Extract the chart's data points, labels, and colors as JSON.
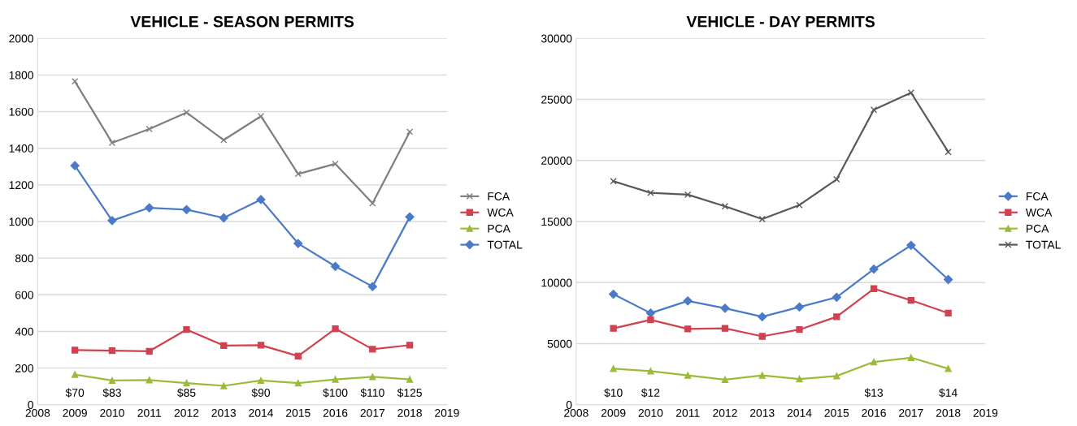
{
  "chart_data": [
    {
      "type": "line",
      "title": "VEHICLE - SEASON PERMITS",
      "x": [
        2009,
        2010,
        2011,
        2012,
        2013,
        2014,
        2015,
        2016,
        2017,
        2018
      ],
      "xlim": [
        2008,
        2019
      ],
      "xticks": [
        2008,
        2009,
        2010,
        2011,
        2012,
        2013,
        2014,
        2015,
        2016,
        2017,
        2018,
        2019
      ],
      "ylim": [
        0,
        2000
      ],
      "yticks": [
        0,
        200,
        400,
        600,
        800,
        1000,
        1200,
        1400,
        1600,
        1800,
        2000
      ],
      "grid": "y",
      "legend": "right",
      "series": [
        {
          "name": "FCA",
          "color": "#7f7f7f",
          "marker": "cross",
          "values": [
            1765,
            1430,
            1505,
            1595,
            1445,
            1575,
            1260,
            1315,
            1100,
            1490
          ]
        },
        {
          "name": "WCA",
          "color": "#d0424f",
          "marker": "square",
          "values": [
            298,
            295,
            292,
            410,
            323,
            325,
            265,
            415,
            303,
            325
          ]
        },
        {
          "name": "PCA",
          "color": "#9bbb3b",
          "marker": "triangle",
          "values": [
            165,
            132,
            135,
            118,
            103,
            132,
            118,
            138,
            152,
            138
          ]
        },
        {
          "name": "TOTAL",
          "color": "#4a7ac8",
          "marker": "diamond",
          "values": [
            1305,
            1005,
            1075,
            1065,
            1020,
            1120,
            880,
            755,
            645,
            1025
          ]
        }
      ],
      "annotations": [
        "$70",
        "$83",
        null,
        "$85",
        null,
        "$90",
        null,
        "$100",
        "$110",
        "$125"
      ]
    },
    {
      "type": "line",
      "title": "VEHICLE - DAY PERMITS",
      "x": [
        2009,
        2010,
        2011,
        2012,
        2013,
        2014,
        2015,
        2016,
        2017,
        2018
      ],
      "xlim": [
        2008,
        2019
      ],
      "xticks": [
        2008,
        2009,
        2010,
        2011,
        2012,
        2013,
        2014,
        2015,
        2016,
        2017,
        2018,
        2019
      ],
      "ylim": [
        0,
        30000
      ],
      "yticks": [
        0,
        5000,
        10000,
        15000,
        20000,
        25000,
        30000
      ],
      "grid": "y",
      "legend": "right",
      "series": [
        {
          "name": "FCA",
          "color": "#4a7ac8",
          "marker": "diamond",
          "values": [
            9050,
            7500,
            8500,
            7900,
            7200,
            8000,
            8800,
            11100,
            13050,
            10250
          ]
        },
        {
          "name": "WCA",
          "color": "#d0424f",
          "marker": "square",
          "values": [
            6250,
            6950,
            6200,
            6250,
            5600,
            6150,
            7200,
            9500,
            8550,
            7500
          ]
        },
        {
          "name": "PCA",
          "color": "#9bbb3b",
          "marker": "triangle",
          "values": [
            2950,
            2750,
            2400,
            2050,
            2400,
            2100,
            2350,
            3500,
            3850,
            2950
          ]
        },
        {
          "name": "TOTAL",
          "color": "#595959",
          "marker": "cross",
          "values": [
            18300,
            17350,
            17200,
            16250,
            15200,
            16350,
            18450,
            24150,
            25550,
            20700
          ]
        }
      ],
      "annotations": [
        "$10",
        "$12",
        null,
        null,
        null,
        null,
        null,
        "$13",
        null,
        "$14"
      ]
    }
  ]
}
